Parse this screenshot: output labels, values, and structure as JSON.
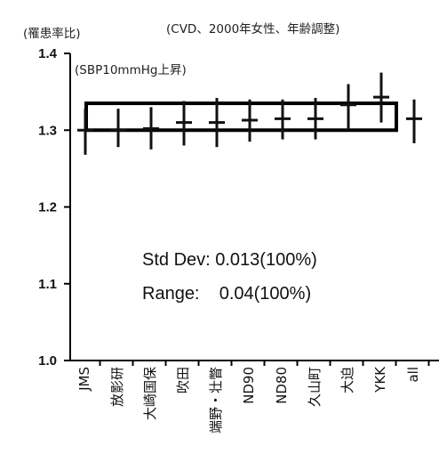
{
  "chart_data": {
    "type": "scatter",
    "title": "(CVD、2000年女性、年齢調整)",
    "ylabel": "(罹患率比)",
    "subtitle": "(SBP10mmHg上昇)",
    "categories": [
      "JMS",
      "放影研",
      "大崎国保",
      "吹田",
      "端野・壮瞥",
      "ND90",
      "ND80",
      "久山町",
      "大迫",
      "YKK",
      "all"
    ],
    "values": [
      1.3,
      1.3,
      1.302,
      1.31,
      1.31,
      1.313,
      1.315,
      1.315,
      1.333,
      1.343,
      1.315
    ],
    "error_low": [
      1.268,
      1.278,
      1.275,
      1.28,
      1.278,
      1.285,
      1.288,
      1.288,
      1.3,
      1.31,
      1.283
    ],
    "error_high": [
      1.328,
      1.328,
      1.33,
      1.338,
      1.342,
      1.34,
      1.34,
      1.342,
      1.36,
      1.375,
      1.34
    ],
    "ylim": [
      1.0,
      1.4
    ],
    "yticks": [
      "1.0",
      "1.1",
      "1.2",
      "1.3",
      "1.4"
    ],
    "band": {
      "low": 1.3,
      "high": 1.335
    },
    "annotations": [
      "Std Dev: 0.013(100%)",
      "Range:    0.04(100%)"
    ],
    "grid": false
  }
}
